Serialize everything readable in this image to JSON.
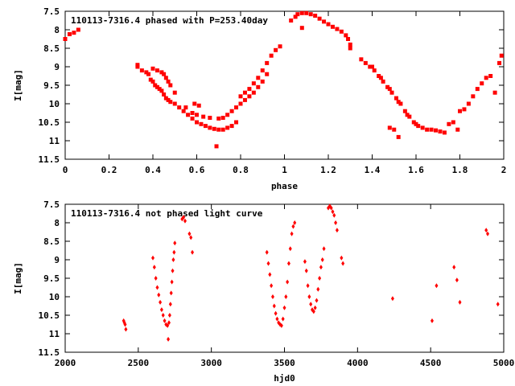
{
  "chart_data": [
    {
      "type": "scatter",
      "title": "110113-7316.4 phased with P=253.40day",
      "xlabel": "phase",
      "ylabel": "I[mag]",
      "xlim": [
        0,
        2
      ],
      "ylim": [
        7.5,
        11.5
      ],
      "y_inverted": true,
      "grid": false,
      "legend": "none",
      "marker_color": "#ff0000",
      "xticks": [
        "0",
        "0.2",
        "0.4",
        "0.6",
        "0.8",
        "1",
        "1.2",
        "1.4",
        "1.6",
        "1.8",
        "2"
      ],
      "yticks": [
        "7.5",
        "8",
        "8.5",
        "9",
        "9.5",
        "10",
        "10.5",
        "11",
        "11.5"
      ],
      "points": [
        [
          0.0,
          8.25
        ],
        [
          0.02,
          8.12
        ],
        [
          0.04,
          8.08
        ],
        [
          0.06,
          8.0
        ],
        [
          0.33,
          8.95
        ],
        [
          0.33,
          9.0
        ],
        [
          0.35,
          9.1
        ],
        [
          0.37,
          9.15
        ],
        [
          0.38,
          9.2
        ],
        [
          0.39,
          9.35
        ],
        [
          0.4,
          9.4
        ],
        [
          0.41,
          9.5
        ],
        [
          0.42,
          9.55
        ],
        [
          0.43,
          9.6
        ],
        [
          0.44,
          9.65
        ],
        [
          0.45,
          9.75
        ],
        [
          0.46,
          9.85
        ],
        [
          0.47,
          9.9
        ],
        [
          0.48,
          9.95
        ],
        [
          0.4,
          9.05
        ],
        [
          0.42,
          9.1
        ],
        [
          0.44,
          9.15
        ],
        [
          0.45,
          9.2
        ],
        [
          0.46,
          9.3
        ],
        [
          0.47,
          9.4
        ],
        [
          0.48,
          9.5
        ],
        [
          0.5,
          9.7
        ],
        [
          0.5,
          10.0
        ],
        [
          0.52,
          10.1
        ],
        [
          0.54,
          10.2
        ],
        [
          0.56,
          10.3
        ],
        [
          0.58,
          10.4
        ],
        [
          0.6,
          10.5
        ],
        [
          0.62,
          10.55
        ],
        [
          0.64,
          10.6
        ],
        [
          0.66,
          10.65
        ],
        [
          0.68,
          10.68
        ],
        [
          0.7,
          10.7
        ],
        [
          0.72,
          10.7
        ],
        [
          0.74,
          10.65
        ],
        [
          0.76,
          10.6
        ],
        [
          0.78,
          10.5
        ],
        [
          0.55,
          10.1
        ],
        [
          0.58,
          10.25
        ],
        [
          0.6,
          10.3
        ],
        [
          0.63,
          10.35
        ],
        [
          0.66,
          10.38
        ],
        [
          0.7,
          10.4
        ],
        [
          0.72,
          10.38
        ],
        [
          0.74,
          10.3
        ],
        [
          0.76,
          10.2
        ],
        [
          0.78,
          10.1
        ],
        [
          0.8,
          10.0
        ],
        [
          0.82,
          9.9
        ],
        [
          0.84,
          9.8
        ],
        [
          0.86,
          9.7
        ],
        [
          0.88,
          9.55
        ],
        [
          0.9,
          9.4
        ],
        [
          0.92,
          9.2
        ],
        [
          0.8,
          9.8
        ],
        [
          0.82,
          9.7
        ],
        [
          0.84,
          9.6
        ],
        [
          0.86,
          9.45
        ],
        [
          0.88,
          9.3
        ],
        [
          0.9,
          9.1
        ],
        [
          0.92,
          8.9
        ],
        [
          0.94,
          8.7
        ],
        [
          0.96,
          8.55
        ],
        [
          0.59,
          10.0
        ],
        [
          0.61,
          10.05
        ],
        [
          0.69,
          11.15
        ],
        [
          0.98,
          8.45
        ],
        [
          1.03,
          7.75
        ],
        [
          1.05,
          7.65
        ],
        [
          1.06,
          7.58
        ],
        [
          1.08,
          7.55
        ],
        [
          1.1,
          7.55
        ],
        [
          1.12,
          7.58
        ],
        [
          1.14,
          7.62
        ],
        [
          1.16,
          7.7
        ],
        [
          1.18,
          7.78
        ],
        [
          1.2,
          7.85
        ],
        [
          1.22,
          7.92
        ],
        [
          1.24,
          7.98
        ],
        [
          1.26,
          8.05
        ],
        [
          1.28,
          8.15
        ],
        [
          1.29,
          8.25
        ],
        [
          1.08,
          7.95
        ],
        [
          1.3,
          8.4
        ],
        [
          1.3,
          8.5
        ],
        [
          1.35,
          8.8
        ],
        [
          1.37,
          8.9
        ],
        [
          1.39,
          9.0
        ],
        [
          1.41,
          9.1
        ],
        [
          1.43,
          9.25
        ],
        [
          1.45,
          9.4
        ],
        [
          1.47,
          9.55
        ],
        [
          1.49,
          9.7
        ],
        [
          1.51,
          9.85
        ],
        [
          1.53,
          10.0
        ],
        [
          1.55,
          10.2
        ],
        [
          1.57,
          10.35
        ],
        [
          1.59,
          10.5
        ],
        [
          1.61,
          10.6
        ],
        [
          1.63,
          10.65
        ],
        [
          1.65,
          10.7
        ],
        [
          1.67,
          10.7
        ],
        [
          1.69,
          10.72
        ],
        [
          1.71,
          10.75
        ],
        [
          1.73,
          10.78
        ],
        [
          1.4,
          9.0
        ],
        [
          1.44,
          9.3
        ],
        [
          1.48,
          9.6
        ],
        [
          1.52,
          9.95
        ],
        [
          1.56,
          10.3
        ],
        [
          1.6,
          10.55
        ],
        [
          1.48,
          10.65
        ],
        [
          1.5,
          10.7
        ],
        [
          1.52,
          10.9
        ],
        [
          1.75,
          10.55
        ],
        [
          1.77,
          10.5
        ],
        [
          1.79,
          10.7
        ],
        [
          1.8,
          10.2
        ],
        [
          1.82,
          10.15
        ],
        [
          1.84,
          10.0
        ],
        [
          1.86,
          9.8
        ],
        [
          1.88,
          9.6
        ],
        [
          1.9,
          9.45
        ],
        [
          1.92,
          9.3
        ],
        [
          1.94,
          9.25
        ],
        [
          1.96,
          9.7
        ],
        [
          1.98,
          8.9
        ],
        [
          1.99,
          8.7
        ]
      ]
    },
    {
      "type": "scatter",
      "title": "110113-7316.4 not phased light curve",
      "xlabel": "hjd0",
      "ylabel": "I[mag]",
      "xlim": [
        2000,
        5000
      ],
      "ylim": [
        7.5,
        11.5
      ],
      "y_inverted": true,
      "grid": false,
      "legend": "none",
      "marker_color": "#ff0000",
      "xticks": [
        "2000",
        "2500",
        "3000",
        "3500",
        "4000",
        "4500",
        "5000"
      ],
      "yticks": [
        "7.5",
        "8",
        "8.5",
        "9",
        "9.5",
        "10",
        "10.5",
        "11",
        "11.5"
      ],
      "points": [
        [
          2400,
          10.65
        ],
        [
          2405,
          10.7
        ],
        [
          2410,
          10.75
        ],
        [
          2415,
          10.88
        ],
        [
          2600,
          8.95
        ],
        [
          2610,
          9.2
        ],
        [
          2620,
          9.5
        ],
        [
          2630,
          9.75
        ],
        [
          2640,
          9.95
        ],
        [
          2650,
          10.15
        ],
        [
          2660,
          10.35
        ],
        [
          2670,
          10.5
        ],
        [
          2680,
          10.65
        ],
        [
          2690,
          10.75
        ],
        [
          2700,
          10.78
        ],
        [
          2710,
          10.7
        ],
        [
          2715,
          10.5
        ],
        [
          2720,
          10.2
        ],
        [
          2725,
          9.9
        ],
        [
          2730,
          9.6
        ],
        [
          2735,
          9.3
        ],
        [
          2740,
          9.0
        ],
        [
          2745,
          8.8
        ],
        [
          2750,
          8.55
        ],
        [
          2705,
          11.15
        ],
        [
          2800,
          7.9
        ],
        [
          2810,
          7.85
        ],
        [
          2820,
          7.95
        ],
        [
          2850,
          8.3
        ],
        [
          2860,
          8.4
        ],
        [
          2870,
          8.8
        ],
        [
          3380,
          8.8
        ],
        [
          3390,
          9.1
        ],
        [
          3400,
          9.4
        ],
        [
          3410,
          9.7
        ],
        [
          3420,
          10.0
        ],
        [
          3430,
          10.25
        ],
        [
          3440,
          10.45
        ],
        [
          3450,
          10.6
        ],
        [
          3460,
          10.7
        ],
        [
          3470,
          10.75
        ],
        [
          3480,
          10.78
        ],
        [
          3490,
          10.6
        ],
        [
          3500,
          10.3
        ],
        [
          3510,
          10.0
        ],
        [
          3520,
          9.6
        ],
        [
          3530,
          9.1
        ],
        [
          3540,
          8.7
        ],
        [
          3550,
          8.3
        ],
        [
          3560,
          8.1
        ],
        [
          3570,
          8.0
        ],
        [
          3640,
          9.05
        ],
        [
          3650,
          9.3
        ],
        [
          3660,
          9.7
        ],
        [
          3670,
          10.0
        ],
        [
          3680,
          10.2
        ],
        [
          3690,
          10.35
        ],
        [
          3700,
          10.4
        ],
        [
          3710,
          10.3
        ],
        [
          3720,
          10.1
        ],
        [
          3730,
          9.8
        ],
        [
          3740,
          9.5
        ],
        [
          3750,
          9.2
        ],
        [
          3760,
          9.0
        ],
        [
          3770,
          8.7
        ],
        [
          3800,
          7.6
        ],
        [
          3810,
          7.55
        ],
        [
          3820,
          7.6
        ],
        [
          3830,
          7.7
        ],
        [
          3840,
          7.8
        ],
        [
          3850,
          8.0
        ],
        [
          3860,
          8.2
        ],
        [
          3890,
          8.95
        ],
        [
          3900,
          9.1
        ],
        [
          4240,
          10.05
        ],
        [
          4510,
          10.65
        ],
        [
          4540,
          9.7
        ],
        [
          4660,
          9.2
        ],
        [
          4680,
          9.55
        ],
        [
          4700,
          10.15
        ],
        [
          4880,
          8.2
        ],
        [
          4890,
          8.3
        ],
        [
          4960,
          10.2
        ]
      ]
    }
  ]
}
